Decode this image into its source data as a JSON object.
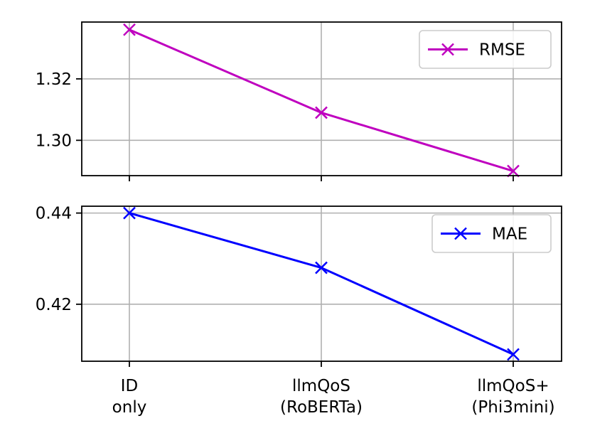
{
  "chart_data": [
    {
      "type": "line",
      "categories": [
        "ID\nonly",
        "llmQoS\n(RoBERTa)",
        "llmQoS+\n(Phi3mini)"
      ],
      "series": [
        {
          "name": "RMSE",
          "values": [
            1.336,
            1.309,
            1.29
          ],
          "color": "#bf00bf",
          "marker": "x"
        }
      ],
      "ylim": [
        1.2885,
        1.3385
      ],
      "yticks": [
        1.3,
        1.32
      ],
      "ytick_labels": [
        "1.30",
        "1.32"
      ],
      "grid": true,
      "legend": "top-right",
      "xticklabels_visible": false
    },
    {
      "type": "line",
      "categories": [
        "ID\nonly",
        "llmQoS\n(RoBERTa)",
        "llmQoS+\n(Phi3mini)"
      ],
      "series": [
        {
          "name": "MAE",
          "values": [
            0.44,
            0.428,
            0.409
          ],
          "color": "#0000ff",
          "marker": "x"
        }
      ],
      "ylim": [
        0.4075,
        0.4415
      ],
      "yticks": [
        0.42,
        0.44
      ],
      "ytick_labels": [
        "0.42",
        "0.44"
      ],
      "grid": true,
      "legend": "top-right",
      "xticklabels_visible": true
    }
  ],
  "xtick_labels": [
    [
      "ID",
      "only"
    ],
    [
      "llmQoS",
      "(RoBERTa)"
    ],
    [
      "llmQoS+",
      "(Phi3mini)"
    ]
  ]
}
